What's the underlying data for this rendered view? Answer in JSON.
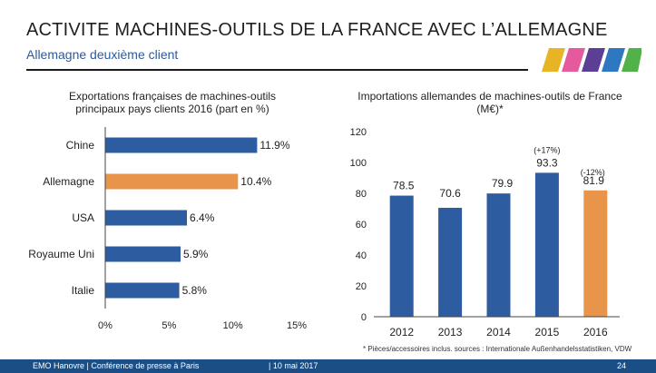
{
  "header": {
    "title": "ACTIVITE MACHINES-OUTILS DE LA FRANCE AVEC L’ALLEMAGNE",
    "subtitle": "Allemagne deuxième client"
  },
  "colors": {
    "bar_blue": "#2e5ca0",
    "bar_orange": "#e8954b",
    "footer": "#1c4e86",
    "logo": [
      "#e7b426",
      "#e55a9c",
      "#5c3f94",
      "#2e78c2",
      "#53b14a"
    ]
  },
  "chart_data": [
    {
      "type": "bar",
      "orientation": "horizontal",
      "title": "Exportations françaises de machines-outils principaux pays clients 2016 (part en %)",
      "title_lines": [
        "Exportations françaises de machines-outils",
        "principaux pays clients 2016 (part en %)"
      ],
      "categories": [
        "Chine",
        "Allemagne",
        "USA",
        "Royaume Uni",
        "Italie"
      ],
      "values": [
        11.9,
        10.4,
        6.4,
        5.9,
        5.8
      ],
      "labels": [
        "11.9%",
        "10.4%",
        "6.4%",
        "5.9%",
        "5.8%"
      ],
      "highlight": "Allemagne",
      "xlim": [
        0,
        15
      ],
      "xticks": [
        "0%",
        "5%",
        "10%",
        "15%"
      ],
      "grid": false
    },
    {
      "type": "bar",
      "orientation": "vertical",
      "title": "Importations allemandes de machines-outils de France (M€)*",
      "title_lines": [
        "Importations allemandes de machines-outils de France",
        "(M€)*"
      ],
      "categories": [
        "2012",
        "2013",
        "2014",
        "2015",
        "2016"
      ],
      "values": [
        78.5,
        70.6,
        79.9,
        93.3,
        81.9
      ],
      "labels": [
        "78.5",
        "70.6",
        "79.9",
        "93.3",
        "81.9"
      ],
      "highlight": "2016",
      "annotations": [
        {
          "category": "2015",
          "text": "(+17%)"
        },
        {
          "category": "2016",
          "text": "(-12%)"
        }
      ],
      "ylim": [
        0,
        120
      ],
      "yticks": [
        "0",
        "20",
        "40",
        "60",
        "80",
        "100",
        "120"
      ],
      "grid": false
    }
  ],
  "source_note": "* Pièces/accessoires inclus. sources : Internationale Außenhandelsstatistiken, VDW",
  "footer": {
    "left": "EMO Hanovre | Conférence de presse à Paris",
    "mid": "| 10 mai 2017",
    "page": "24"
  }
}
